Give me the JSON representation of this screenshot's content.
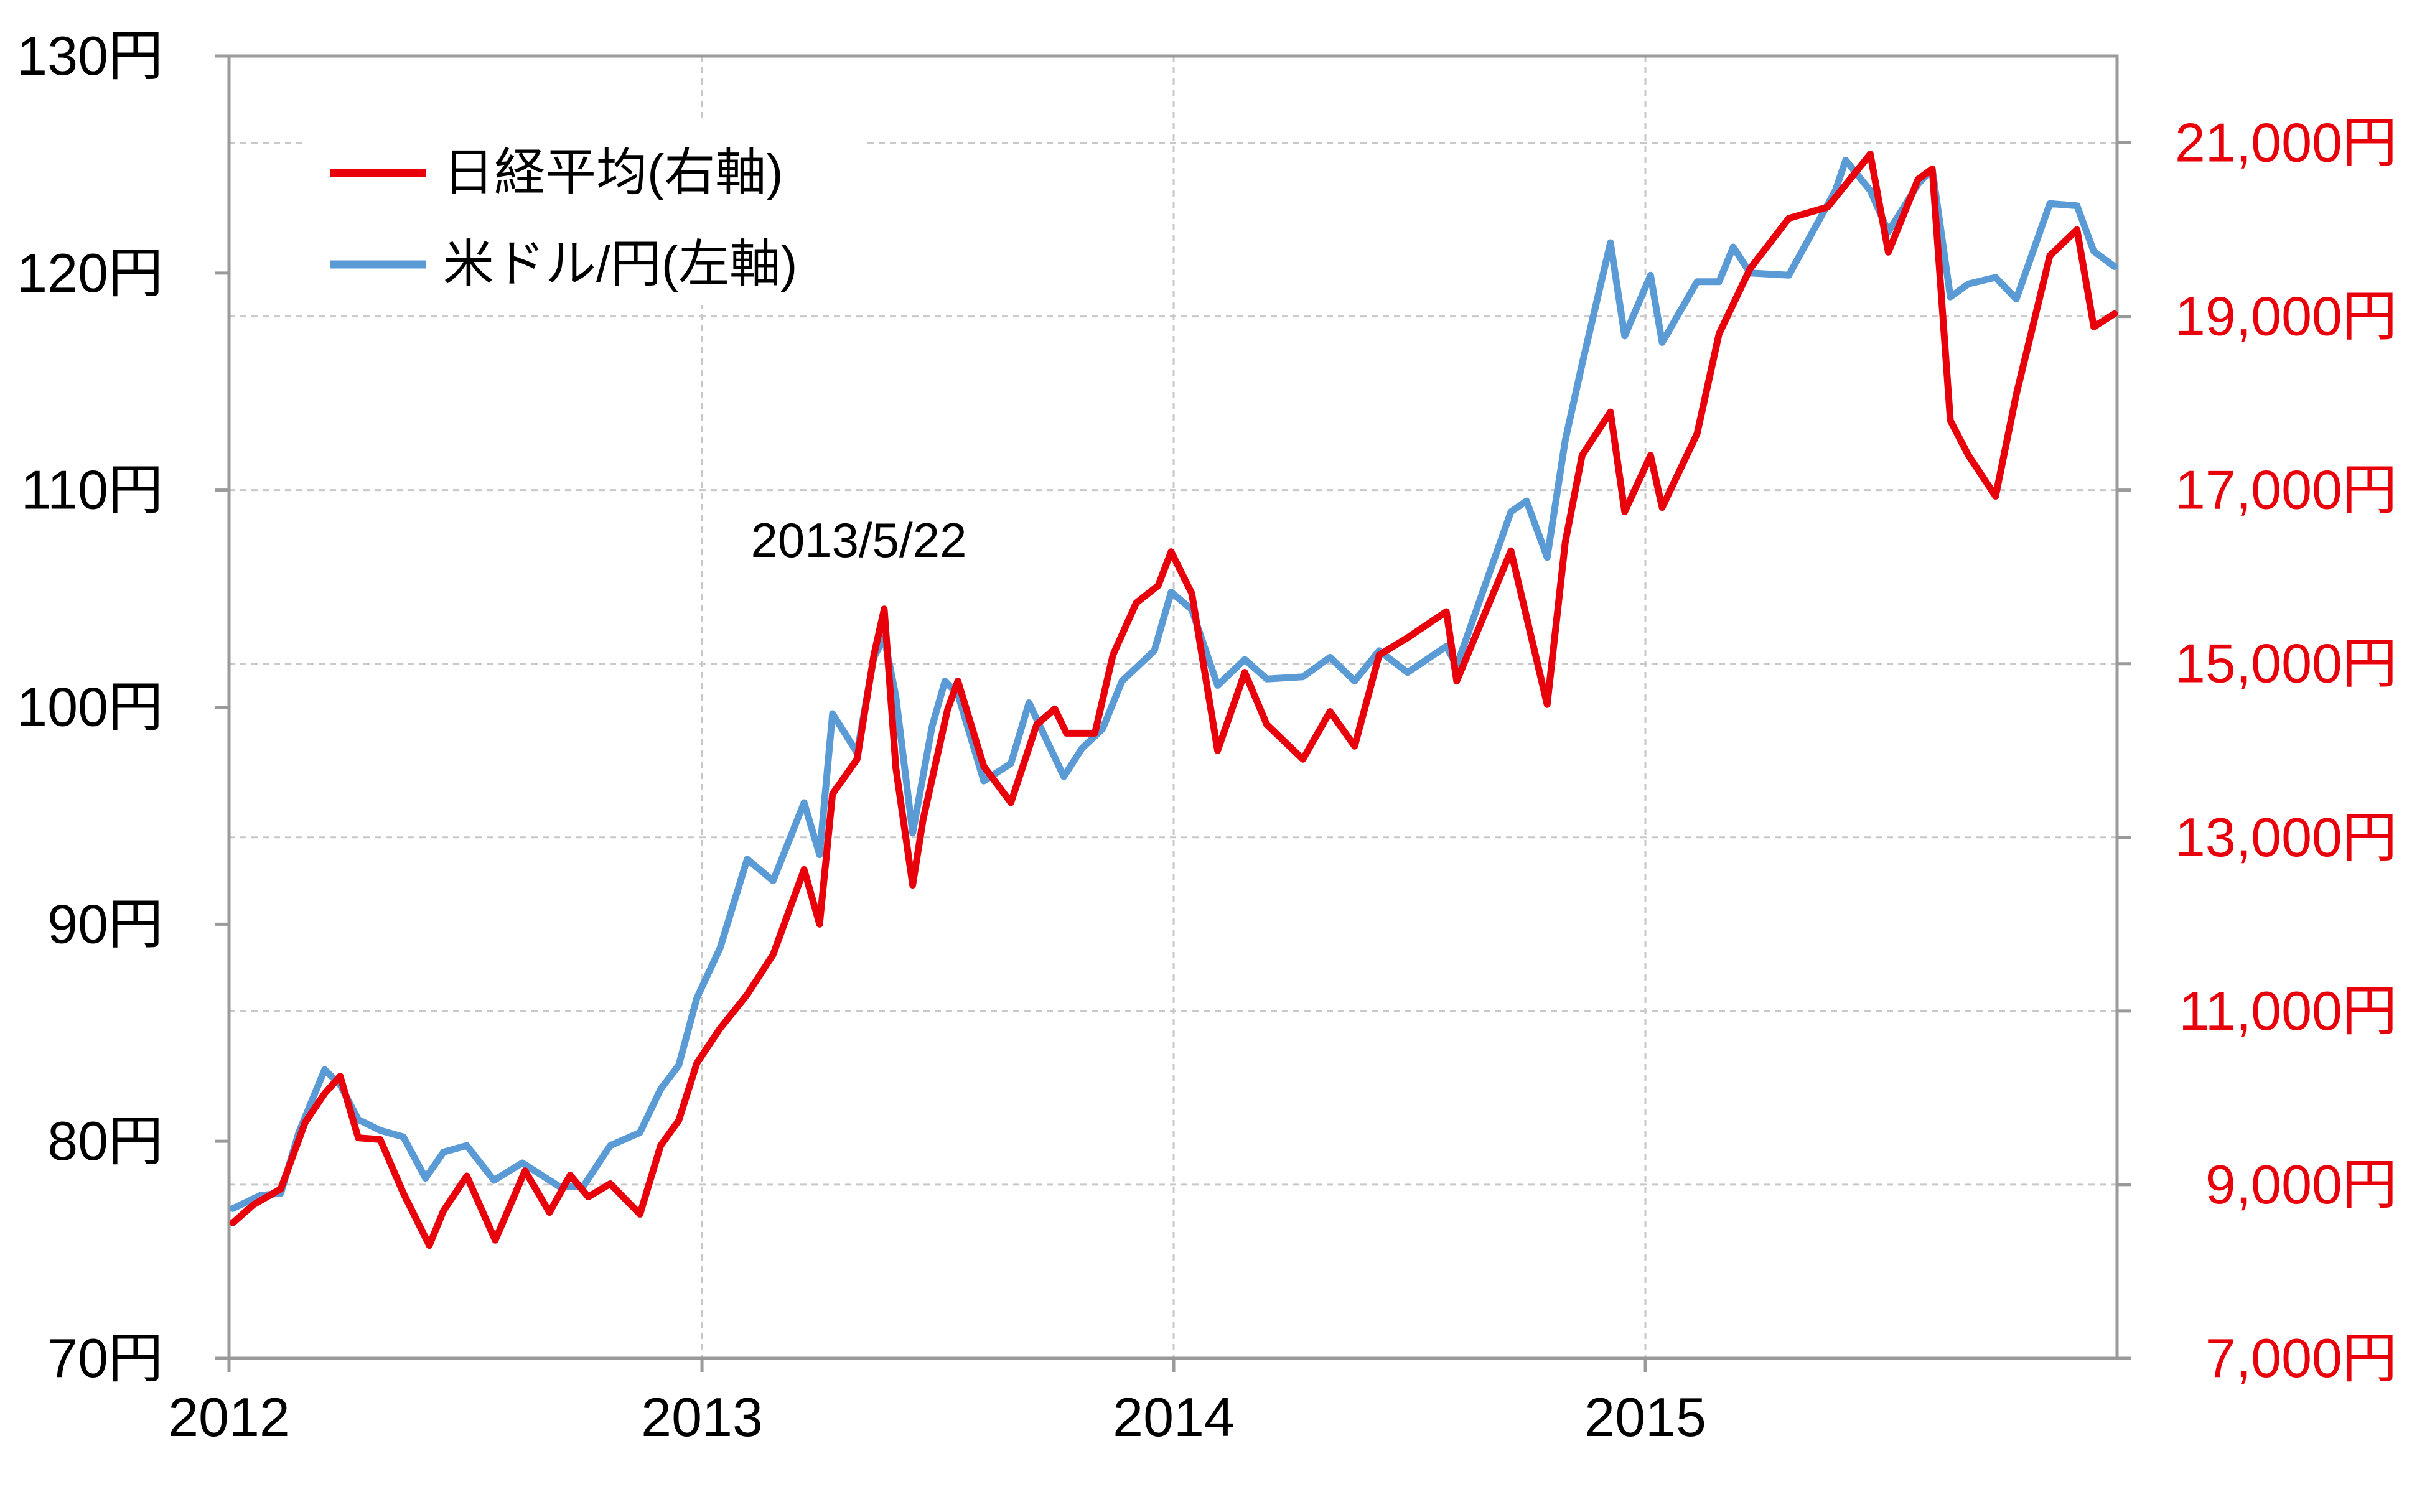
{
  "chart_data": {
    "type": "line",
    "x_ticks": [
      "2012",
      "2013",
      "2014",
      "2015"
    ],
    "x_range": [
      "2012-01-01",
      "2016-01-01"
    ],
    "y_left": {
      "ticks": [
        "70円",
        "80円",
        "90円",
        "100円",
        "110円",
        "120円",
        "130円"
      ],
      "range": [
        70,
        130
      ]
    },
    "y_right": {
      "ticks": [
        "7,000円",
        "9,000円",
        "11,000円",
        "13,000円",
        "15,000円",
        "17,000円",
        "19,000円",
        "21,000円"
      ],
      "range": [
        7000,
        22000
      ]
    },
    "annotation": {
      "text": "2013/5/22",
      "date": "2013-05-22"
    },
    "legend": {
      "placement": "top-left",
      "items": [
        {
          "label": "日経平均(右軸)",
          "color": "#e8000b"
        },
        {
          "label": "米ドル/円(左軸)",
          "color": "#5b9bd5"
        }
      ]
    },
    "grid": true,
    "series": [
      {
        "name": "日経平均(右軸)",
        "axis": "right",
        "color": "#e8000b",
        "points": [
          [
            "2012-01-04",
            8560
          ],
          [
            "2012-01-20",
            8770
          ],
          [
            "2012-02-10",
            8950
          ],
          [
            "2012-02-29",
            9720
          ],
          [
            "2012-03-15",
            10050
          ],
          [
            "2012-03-27",
            10250
          ],
          [
            "2012-04-10",
            9540
          ],
          [
            "2012-04-27",
            9520
          ],
          [
            "2012-05-15",
            8900
          ],
          [
            "2012-06-04",
            8300
          ],
          [
            "2012-06-15",
            8700
          ],
          [
            "2012-07-03",
            9100
          ],
          [
            "2012-07-25",
            8360
          ],
          [
            "2012-08-17",
            9160
          ],
          [
            "2012-09-05",
            8680
          ],
          [
            "2012-09-21",
            9110
          ],
          [
            "2012-10-05",
            8860
          ],
          [
            "2012-10-22",
            9010
          ],
          [
            "2012-11-14",
            8660
          ],
          [
            "2012-11-30",
            9450
          ],
          [
            "2012-12-14",
            9740
          ],
          [
            "2012-12-28",
            10400
          ],
          [
            "2013-01-15",
            10800
          ],
          [
            "2013-02-05",
            11190
          ],
          [
            "2013-02-25",
            11650
          ],
          [
            "2013-03-21",
            12630
          ],
          [
            "2013-04-02",
            12000
          ],
          [
            "2013-04-12",
            13500
          ],
          [
            "2013-05-01",
            13900
          ],
          [
            "2013-05-14",
            15100
          ],
          [
            "2013-05-22",
            15630
          ],
          [
            "2013-05-31",
            13800
          ],
          [
            "2013-06-13",
            12450
          ],
          [
            "2013-06-21",
            13200
          ],
          [
            "2013-07-10",
            14470
          ],
          [
            "2013-07-18",
            14800
          ],
          [
            "2013-08-07",
            13820
          ],
          [
            "2013-08-28",
            13400
          ],
          [
            "2013-09-17",
            14300
          ],
          [
            "2013-10-01",
            14480
          ],
          [
            "2013-10-10",
            14200
          ],
          [
            "2013-11-01",
            14200
          ],
          [
            "2013-11-15",
            15100
          ],
          [
            "2013-12-03",
            15700
          ],
          [
            "2013-12-20",
            15900
          ],
          [
            "2013-12-30",
            16290
          ],
          [
            "2014-01-15",
            15810
          ],
          [
            "2014-02-04",
            14000
          ],
          [
            "2014-02-25",
            14900
          ],
          [
            "2014-03-14",
            14300
          ],
          [
            "2014-04-11",
            13900
          ],
          [
            "2014-05-02",
            14450
          ],
          [
            "2014-05-21",
            14050
          ],
          [
            "2014-06-09",
            15100
          ],
          [
            "2014-07-01",
            15300
          ],
          [
            "2014-07-31",
            15600
          ],
          [
            "2014-08-08",
            14800
          ],
          [
            "2014-09-19",
            16300
          ],
          [
            "2014-10-17",
            14530
          ],
          [
            "2014-10-31",
            16400
          ],
          [
            "2014-11-13",
            17400
          ],
          [
            "2014-12-05",
            17900
          ],
          [
            "2014-12-16",
            16750
          ],
          [
            "2015-01-05",
            17400
          ],
          [
            "2015-01-14",
            16800
          ],
          [
            "2015-02-10",
            17650
          ],
          [
            "2015-02-27",
            18800
          ],
          [
            "2015-03-23",
            19550
          ],
          [
            "2015-04-22",
            20130
          ],
          [
            "2015-05-22",
            20260
          ],
          [
            "2015-06-24",
            20870
          ],
          [
            "2015-07-08",
            19740
          ],
          [
            "2015-07-31",
            20580
          ],
          [
            "2015-08-11",
            20700
          ],
          [
            "2015-08-25",
            17800
          ],
          [
            "2015-09-08",
            17400
          ],
          [
            "2015-09-29",
            16930
          ],
          [
            "2015-10-15",
            18100
          ],
          [
            "2015-11-10",
            19700
          ],
          [
            "2015-12-01",
            20000
          ],
          [
            "2015-12-14",
            18880
          ],
          [
            "2015-12-30",
            19030
          ]
        ]
      },
      {
        "name": "米ドル/円(左軸)",
        "axis": "left",
        "color": "#5b9bd5",
        "points": [
          [
            "2012-01-04",
            76.9
          ],
          [
            "2012-01-25",
            77.5
          ],
          [
            "2012-02-10",
            77.6
          ],
          [
            "2012-02-24",
            80.4
          ],
          [
            "2012-03-15",
            83.3
          ],
          [
            "2012-03-27",
            82.6
          ],
          [
            "2012-04-10",
            81.0
          ],
          [
            "2012-04-27",
            80.5
          ],
          [
            "2012-05-15",
            80.2
          ],
          [
            "2012-06-01",
            78.3
          ],
          [
            "2012-06-15",
            79.5
          ],
          [
            "2012-07-03",
            79.8
          ],
          [
            "2012-07-24",
            78.2
          ],
          [
            "2012-08-15",
            79.0
          ],
          [
            "2012-09-13",
            77.9
          ],
          [
            "2012-10-01",
            77.9
          ],
          [
            "2012-10-22",
            79.8
          ],
          [
            "2012-11-14",
            80.4
          ],
          [
            "2012-11-30",
            82.4
          ],
          [
            "2012-12-14",
            83.5
          ],
          [
            "2012-12-28",
            86.6
          ],
          [
            "2013-01-15",
            88.9
          ],
          [
            "2013-02-05",
            93.0
          ],
          [
            "2013-02-25",
            92.0
          ],
          [
            "2013-03-21",
            95.6
          ],
          [
            "2013-04-02",
            93.2
          ],
          [
            "2013-04-12",
            99.7
          ],
          [
            "2013-05-01",
            97.9
          ],
          [
            "2013-05-14",
            102.3
          ],
          [
            "2013-05-22",
            103.2
          ],
          [
            "2013-05-31",
            100.5
          ],
          [
            "2013-06-13",
            94.2
          ],
          [
            "2013-06-28",
            99.1
          ],
          [
            "2013-07-08",
            101.2
          ],
          [
            "2013-07-18",
            100.6
          ],
          [
            "2013-08-07",
            96.6
          ],
          [
            "2013-08-28",
            97.4
          ],
          [
            "2013-09-11",
            100.2
          ],
          [
            "2013-10-08",
            96.8
          ],
          [
            "2013-10-22",
            98.1
          ],
          [
            "2013-11-07",
            99.0
          ],
          [
            "2013-11-22",
            101.2
          ],
          [
            "2013-12-17",
            102.6
          ],
          [
            "2013-12-30",
            105.3
          ],
          [
            "2014-01-15",
            104.5
          ],
          [
            "2014-02-04",
            101.0
          ],
          [
            "2014-02-25",
            102.2
          ],
          [
            "2014-03-14",
            101.3
          ],
          [
            "2014-04-11",
            101.4
          ],
          [
            "2014-05-02",
            102.3
          ],
          [
            "2014-05-21",
            101.2
          ],
          [
            "2014-06-09",
            102.6
          ],
          [
            "2014-07-01",
            101.6
          ],
          [
            "2014-07-31",
            102.8
          ],
          [
            "2014-08-08",
            101.9
          ],
          [
            "2014-09-19",
            109.0
          ],
          [
            "2014-10-01",
            109.5
          ],
          [
            "2014-10-17",
            106.9
          ],
          [
            "2014-10-31",
            112.3
          ],
          [
            "2014-11-13",
            115.8
          ],
          [
            "2014-12-05",
            121.4
          ],
          [
            "2014-12-16",
            117.1
          ],
          [
            "2015-01-05",
            119.9
          ],
          [
            "2015-01-14",
            116.8
          ],
          [
            "2015-02-10",
            119.6
          ],
          [
            "2015-02-27",
            119.6
          ],
          [
            "2015-03-10",
            121.2
          ],
          [
            "2015-03-23",
            120.0
          ],
          [
            "2015-04-22",
            119.9
          ],
          [
            "2015-05-28",
            123.8
          ],
          [
            "2015-06-05",
            125.2
          ],
          [
            "2015-06-24",
            123.8
          ],
          [
            "2015-07-08",
            121.9
          ],
          [
            "2015-07-31",
            124.1
          ],
          [
            "2015-08-11",
            124.8
          ],
          [
            "2015-08-25",
            118.9
          ],
          [
            "2015-09-08",
            119.5
          ],
          [
            "2015-09-29",
            119.8
          ],
          [
            "2015-10-15",
            118.8
          ],
          [
            "2015-11-10",
            123.2
          ],
          [
            "2015-12-01",
            123.1
          ],
          [
            "2015-12-14",
            121.0
          ],
          [
            "2015-12-30",
            120.3
          ]
        ]
      }
    ]
  }
}
